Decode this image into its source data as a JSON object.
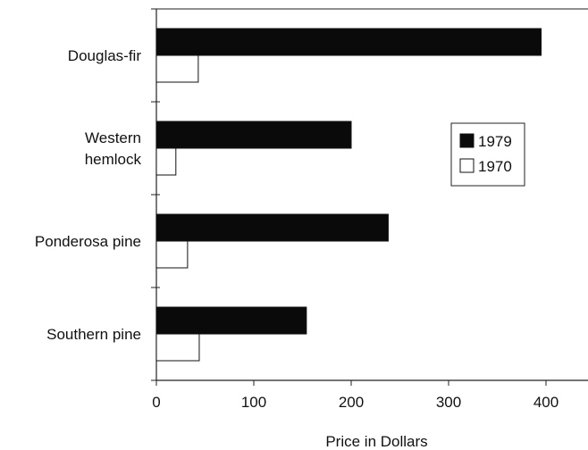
{
  "chart_data": {
    "type": "bar",
    "orientation": "horizontal",
    "categories": [
      "Douglas-fir",
      "Western hemlock",
      "Ponderosa pine",
      "Southern pine"
    ],
    "category_label_lines": [
      [
        "Douglas-fir"
      ],
      [
        "Western",
        "hemlock"
      ],
      [
        "Ponderosa pine"
      ],
      [
        "Southern pine"
      ]
    ],
    "series": [
      {
        "name": "1979",
        "color": "#0a0a0a",
        "values": [
          395,
          200,
          238,
          154
        ]
      },
      {
        "name": "1970",
        "color": "#ffffff",
        "values": [
          43,
          20,
          32,
          44
        ]
      }
    ],
    "xlabel": "Price in Dollars",
    "ylabel": "",
    "xlim": [
      0,
      450
    ],
    "xticks": [
      0,
      100,
      200,
      300,
      400
    ],
    "grid": false,
    "legend_position": "right"
  }
}
